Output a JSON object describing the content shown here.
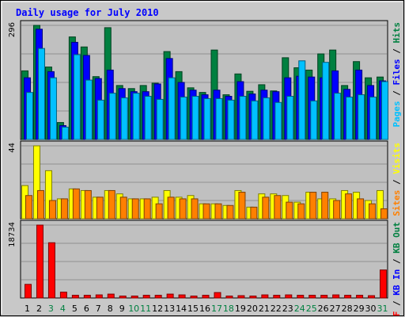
{
  "chart_data": {
    "type": "bar",
    "title": "Daily usage for July 2010",
    "days": [
      "1",
      "2",
      "3",
      "4",
      "5",
      "6",
      "7",
      "8",
      "9",
      "10",
      "11",
      "12",
      "13",
      "14",
      "15",
      "16",
      "17",
      "18",
      "19",
      "20",
      "21",
      "22",
      "23",
      "24",
      "25",
      "26",
      "27",
      "28",
      "29",
      "30",
      "31"
    ],
    "weekend_days": [
      "3",
      "4",
      "10",
      "11",
      "17",
      "18",
      "24",
      "25",
      "31"
    ],
    "colors": {
      "hits": "#008040",
      "files": "#0000ff",
      "pages": "#00c0ff",
      "visits": "#ffff00",
      "sites": "#ff8000",
      "kb_in": "#0000ff",
      "kb_out": "#008040",
      "kb_f": "#ff0000",
      "weekday_label": "#000000",
      "weekend_label": "#008040",
      "panel_bg": "#c0c0c0",
      "title": "#0000ff"
    },
    "panels": [
      {
        "id": "hits",
        "ymax_label": "296",
        "ymax": 296,
        "legend": [
          {
            "text": "Pages",
            "color": "#00c0ff"
          },
          {
            "text": " / ",
            "color": "#000000"
          },
          {
            "text": "Files",
            "color": "#0000ff"
          },
          {
            "text": " / ",
            "color": "#000000"
          },
          {
            "text": "Hits",
            "color": "#008040"
          }
        ],
        "series": [
          {
            "name": "Hits",
            "color": "#008040",
            "values": [
              178,
              296,
              188,
              44,
              266,
              240,
              163,
              290,
              140,
              132,
              140,
              146,
              228,
              176,
              134,
              122,
              232,
              116,
              170,
              125,
              142,
              126,
              212,
              186,
              180,
              222,
              232,
              140,
              202,
              160,
              162
            ]
          },
          {
            "name": "Files",
            "color": "#0000ff",
            "values": [
              160,
              286,
              176,
              36,
              252,
              218,
              158,
              180,
              132,
              124,
              124,
              144,
              210,
              148,
              128,
              116,
              128,
              112,
              150,
              118,
              128,
              124,
              160,
              164,
              162,
              160,
              178,
              130,
              180,
              140,
              152
            ]
          },
          {
            "name": "Pages",
            "color": "#00c0ff",
            "values": [
              122,
              236,
              160,
              32,
              220,
              154,
              102,
              120,
              108,
              120,
              112,
              104,
              160,
              110,
              112,
              106,
              106,
              102,
              112,
              100,
              108,
              96,
              112,
              204,
              100,
              200,
              120,
              110,
              116,
              110,
              150
            ]
          }
        ]
      },
      {
        "id": "visits",
        "ymax_label": "44",
        "ymax": 44,
        "legend": [
          {
            "text": "Sites",
            "color": "#ff8000"
          },
          {
            "text": " / ",
            "color": "#000000"
          },
          {
            "text": "Visits",
            "color": "#ffff00"
          }
        ],
        "series": [
          {
            "name": "Visits",
            "color": "#ffff00",
            "values": [
              20,
              44,
              29,
              12,
              18,
              17,
              13,
              17,
              15,
              12,
              12,
              13,
              17,
              13,
              14,
              9,
              9,
              8,
              17,
              7,
              15,
              15,
              14,
              10,
              16,
              12,
              12,
              17,
              16,
              11,
              17
            ]
          },
          {
            "name": "Sites",
            "color": "#ff8000",
            "values": [
              14,
              17,
              11,
              12,
              18,
              17,
              13,
              17,
              13,
              12,
              12,
              9,
              13,
              12,
              12,
              9,
              9,
              8,
              16,
              7,
              13,
              14,
              10,
              9,
              16,
              16,
              11,
              15,
              12,
              9,
              6
            ]
          }
        ]
      },
      {
        "id": "kbytes",
        "ymax_label": "18734",
        "ymax": 18734,
        "legend": [
          {
            "text": "KB F",
            "color": "#ff0000"
          },
          {
            "text": " / ",
            "color": "#000000"
          },
          {
            "text": "KB In",
            "color": "#0000ff"
          },
          {
            "text": " / ",
            "color": "#000000"
          },
          {
            "text": "KB Out",
            "color": "#008040"
          }
        ],
        "series": [
          {
            "name": "KB F",
            "color": "#ff0000",
            "values": [
              3500,
              18734,
              14200,
              1500,
              700,
              700,
              800,
              1000,
              500,
              500,
              700,
              700,
              1000,
              800,
              500,
              700,
              1400,
              500,
              600,
              500,
              800,
              700,
              800,
              700,
              700,
              700,
              800,
              700,
              700,
              600,
              7200
            ]
          }
        ]
      }
    ]
  }
}
